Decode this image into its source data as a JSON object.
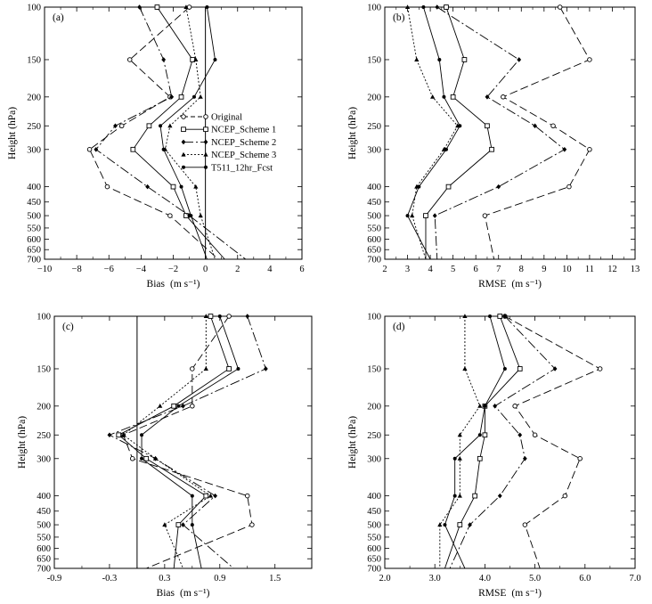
{
  "chart_data": [
    {
      "type": "line",
      "panel_label": "(a)",
      "xlabel": "Bias",
      "xunit": "(m s⁻¹)",
      "ylabel": "Height (hPa)",
      "xlim": [
        -10,
        6
      ],
      "xticks": [
        -10,
        -8,
        -6,
        -4,
        -2,
        0,
        2,
        4,
        6
      ],
      "xtick_labels": [
        "−10",
        "−8",
        "−6",
        "−4",
        "−2",
        "0",
        "2",
        "4",
        "6"
      ],
      "y": [
        100,
        150,
        200,
        250,
        300,
        400,
        500,
        700
      ],
      "reference_x": 0,
      "series": [
        {
          "name": "Original",
          "values": [
            -1.0,
            -4.7,
            -2.2,
            -5.2,
            -7.2,
            -6.1,
            -2.2,
            0.8
          ]
        },
        {
          "name": "NCEP_Scheme 1",
          "values": [
            -3.0,
            -0.8,
            -1.5,
            -3.5,
            -4.5,
            -2.0,
            -1.2,
            1.2
          ]
        },
        {
          "name": "NCEP_Scheme 2",
          "values": [
            -4.1,
            -2.6,
            -2.1,
            -5.6,
            -6.8,
            -3.6,
            -1.0,
            2.5
          ]
        },
        {
          "name": "NCEP_Scheme 3",
          "values": [
            -1.2,
            -0.6,
            -0.3,
            -2.2,
            -2.5,
            -0.6,
            -0.3,
            0.6
          ]
        },
        {
          "name": "T511_12hr_Fcst",
          "values": [
            0.1,
            0.6,
            -0.7,
            -2.8,
            -2.6,
            -1.5,
            -0.9,
            0.1
          ]
        }
      ]
    },
    {
      "type": "line",
      "panel_label": "(b)",
      "xlabel": "RMSE",
      "xunit": "(m s⁻¹)",
      "ylabel": "Height (hPa)",
      "xlim": [
        2,
        13
      ],
      "xticks": [
        2,
        3,
        4,
        5,
        6,
        7,
        8,
        9,
        10,
        11,
        12,
        13
      ],
      "xtick_labels": [
        "2",
        "3",
        "4",
        "5",
        "6",
        "7",
        "8",
        "9",
        "10",
        "11",
        "12",
        "13"
      ],
      "y": [
        100,
        150,
        200,
        250,
        300,
        400,
        500,
        700
      ],
      "series": [
        {
          "name": "Original",
          "values": [
            9.7,
            11.0,
            7.2,
            9.4,
            11.0,
            10.1,
            6.4,
            6.8
          ]
        },
        {
          "name": "NCEP_Scheme 1",
          "values": [
            4.7,
            5.5,
            5.0,
            6.5,
            6.7,
            4.8,
            3.8,
            3.8
          ]
        },
        {
          "name": "NCEP_Scheme 2",
          "values": [
            4.3,
            7.9,
            6.5,
            8.6,
            9.9,
            7.0,
            4.2,
            4.3
          ]
        },
        {
          "name": "NCEP_Scheme 3",
          "values": [
            3.0,
            3.4,
            4.1,
            5.2,
            4.6,
            3.4,
            3.2,
            3.8
          ]
        },
        {
          "name": "T511_12hr_Fcst",
          "values": [
            3.7,
            4.4,
            4.6,
            5.3,
            4.7,
            3.5,
            3.0,
            4.0
          ]
        }
      ]
    },
    {
      "type": "line",
      "panel_label": "(c)",
      "xlabel": "Bias",
      "xunit": "(m s⁻¹)",
      "ylabel": "Height (hPa)",
      "xlim": [
        -0.9,
        1.9
      ],
      "xticks": [
        -0.9,
        -0.3,
        0.3,
        0.9,
        1.5
      ],
      "xtick_labels": [
        "-0.9",
        "-0.3",
        "0.3",
        "0.9",
        "1.5"
      ],
      "y": [
        100,
        150,
        200,
        250,
        300,
        400,
        500,
        700
      ],
      "reference_x": 0,
      "series": [
        {
          "name": "Original",
          "values": [
            1.0,
            0.6,
            0.6,
            -0.15,
            -0.05,
            1.2,
            1.25,
            0.1
          ]
        },
        {
          "name": "NCEP_Scheme 1",
          "values": [
            0.8,
            1.0,
            0.4,
            -0.2,
            0.1,
            0.75,
            0.45,
            0.4
          ]
        },
        {
          "name": "NCEP_Scheme 2",
          "values": [
            1.2,
            1.4,
            0.5,
            -0.3,
            0.2,
            0.85,
            0.5,
            1.05
          ]
        },
        {
          "name": "NCEP_Scheme 3",
          "values": [
            0.75,
            0.75,
            0.25,
            -0.15,
            0.2,
            0.8,
            0.3,
            0.5
          ]
        },
        {
          "name": "T511_12hr_Fcst",
          "values": [
            0.9,
            1.1,
            0.45,
            0.05,
            0.05,
            0.6,
            0.6,
            0.7
          ]
        }
      ]
    },
    {
      "type": "line",
      "panel_label": "(d)",
      "xlabel": "RMSE",
      "xunit": "(m s⁻¹)",
      "ylabel": "Height (hPa)",
      "xlim": [
        2.0,
        7.0
      ],
      "xticks": [
        2.0,
        3.0,
        4.0,
        5.0,
        6.0,
        7.0
      ],
      "xtick_labels": [
        "2.0",
        "3.0",
        "4.0",
        "5.0",
        "6.0",
        "7.0"
      ],
      "y": [
        100,
        150,
        200,
        250,
        300,
        400,
        500,
        700
      ],
      "series": [
        {
          "name": "Original",
          "values": [
            4.4,
            6.3,
            4.6,
            5.0,
            5.9,
            5.6,
            4.8,
            5.1
          ]
        },
        {
          "name": "NCEP_Scheme 1",
          "values": [
            4.3,
            4.7,
            4.0,
            4.0,
            3.9,
            3.8,
            3.5,
            3.2
          ]
        },
        {
          "name": "NCEP_Scheme 2",
          "values": [
            4.4,
            5.4,
            4.2,
            4.7,
            4.8,
            4.3,
            3.7,
            3.3
          ]
        },
        {
          "name": "NCEP_Scheme 3",
          "values": [
            3.6,
            3.6,
            3.9,
            3.5,
            3.5,
            3.5,
            3.1,
            3.1
          ]
        },
        {
          "name": "T511_12hr_Fcst",
          "values": [
            4.1,
            4.4,
            4.0,
            3.9,
            3.4,
            3.4,
            3.2,
            3.6
          ]
        }
      ]
    }
  ],
  "y_ticks": [
    100,
    150,
    200,
    250,
    300,
    400,
    450,
    500,
    550,
    600,
    650,
    700
  ],
  "legend": {
    "panel": 0,
    "entries": [
      "Original",
      "NCEP_Scheme 1",
      "NCEP_Scheme 2",
      "NCEP_Scheme 3",
      "T511_12hr_Fcst"
    ]
  }
}
